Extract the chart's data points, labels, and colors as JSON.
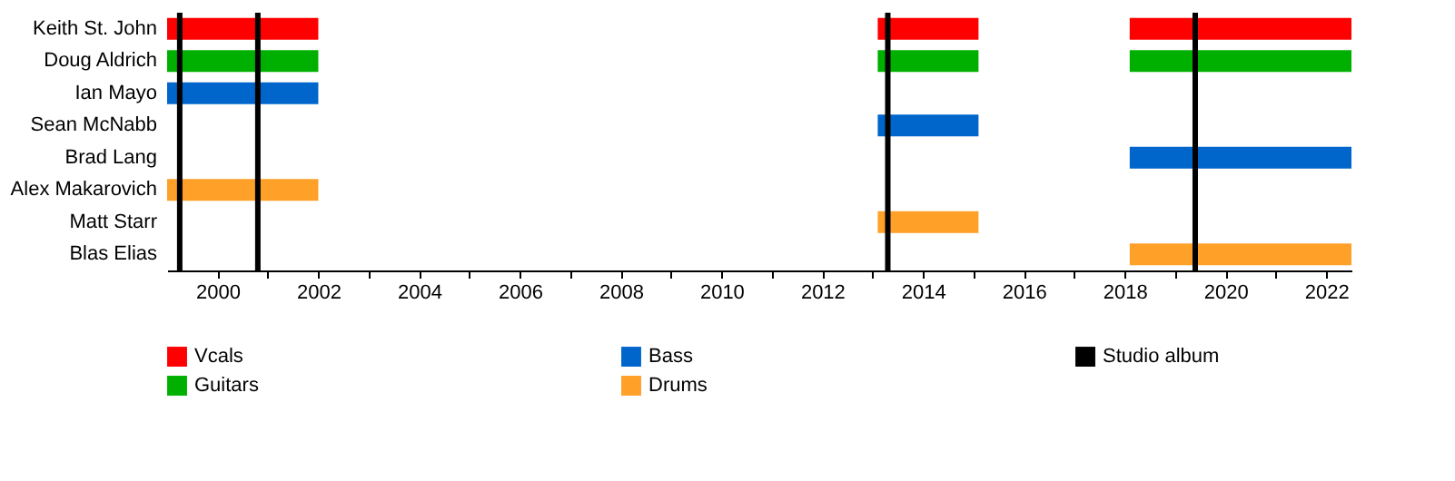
{
  "chart_data": {
    "type": "bar",
    "orientation": "horizontal",
    "categories": [
      "Keith St. John",
      "Doug Aldrich",
      "Ian Mayo",
      "Sean McNabb",
      "Brad Lang",
      "Alex Makarovich",
      "Matt Starr",
      "Blas Elias"
    ],
    "series": [
      {
        "name": "Vcals",
        "color": "#ff0000",
        "base": [
          1999,
          null,
          null,
          null,
          null,
          null,
          null,
          null
        ],
        "values": [
          3,
          null,
          null,
          null,
          null,
          null,
          null,
          null
        ]
      },
      {
        "color": "#ff0000",
        "base": [
          2013.1,
          null,
          null,
          null,
          null,
          null,
          null,
          null
        ],
        "values": [
          2,
          null,
          null,
          null,
          null,
          null,
          null,
          null
        ]
      },
      {
        "color": "#ff0000",
        "base": [
          2018.1,
          null,
          null,
          null,
          null,
          null,
          null,
          null
        ],
        "values": [
          4.4,
          null,
          null,
          null,
          null,
          null,
          null,
          null
        ]
      },
      {
        "name": "Guitars",
        "color": "#00b000",
        "base": [
          null,
          1999,
          null,
          null,
          null,
          null,
          null,
          null
        ],
        "values": [
          null,
          3,
          null,
          null,
          null,
          null,
          null,
          null
        ]
      },
      {
        "color": "#00b000",
        "base": [
          null,
          2013.1,
          null,
          null,
          null,
          null,
          null,
          null
        ],
        "values": [
          null,
          2,
          null,
          null,
          null,
          null,
          null,
          null
        ]
      },
      {
        "color": "#00b000",
        "base": [
          null,
          2018.1,
          null,
          null,
          null,
          null,
          null,
          null
        ],
        "values": [
          null,
          4.4,
          null,
          null,
          null,
          null,
          null,
          null
        ]
      },
      {
        "name": "Bass",
        "color": "#0066cc",
        "base": [
          null,
          null,
          1999,
          2013.1,
          2018.1,
          null,
          null,
          null
        ],
        "values": [
          null,
          null,
          3,
          2,
          4.4,
          null,
          null,
          null
        ]
      },
      {
        "name": "Drums",
        "color": "#ffa029",
        "base": [
          null,
          null,
          null,
          null,
          null,
          1999,
          2013.1,
          2018.1
        ],
        "values": [
          null,
          null,
          null,
          null,
          null,
          3,
          2,
          4.4
        ]
      }
    ],
    "ref_lines": [
      {
        "axis": "x",
        "value": 1999.25,
        "label": "Studio album",
        "color": "#000000"
      },
      {
        "axis": "x",
        "value": 2000.8,
        "color": "#000000"
      },
      {
        "axis": "x",
        "value": 2013.3,
        "color": "#000000"
      },
      {
        "axis": "x",
        "value": 2019.4,
        "color": "#000000"
      }
    ],
    "xlim": [
      1999,
      2022.5
    ],
    "xticks": [
      2000,
      {
        "value": 2001,
        "label": null
      },
      2002,
      {
        "value": 2003,
        "label": null
      },
      2004,
      {
        "value": 2005,
        "label": null
      },
      2006,
      {
        "value": 2007,
        "label": null
      },
      2008,
      {
        "value": 2009,
        "label": null
      },
      2010,
      {
        "value": 2011,
        "label": null
      },
      2012,
      {
        "value": 2013,
        "label": null
      },
      2014,
      {
        "value": 2015,
        "label": null
      },
      2016,
      {
        "value": 2017,
        "label": null
      },
      2018,
      {
        "value": 2019,
        "label": null
      },
      2020,
      {
        "value": 2021,
        "label": null
      },
      2022
    ],
    "grid": false,
    "legend": "bottom"
  }
}
